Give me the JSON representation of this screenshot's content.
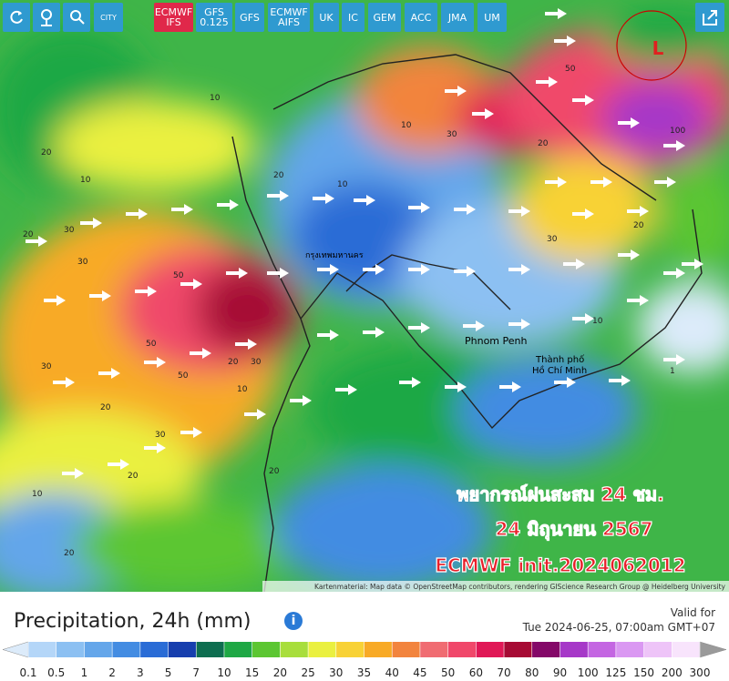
{
  "toolbar": {
    "buttons": [
      {
        "lines": [
          "CITY"
        ]
      },
      {
        "lines": [
          "ECMWF",
          "IFS"
        ]
      },
      {
        "lines": [
          "GFS",
          "0.125"
        ]
      },
      {
        "lines": [
          "GFS"
        ]
      },
      {
        "lines": [
          "ECMWF",
          "AIFS"
        ]
      },
      {
        "lines": [
          "UK"
        ]
      },
      {
        "lines": [
          "IC"
        ]
      },
      {
        "lines": [
          "GEM"
        ]
      },
      {
        "lines": [
          "ACC"
        ]
      },
      {
        "lines": [
          "JMA"
        ]
      },
      {
        "lines": [
          "UM"
        ]
      }
    ]
  },
  "map": {
    "places": [
      "กรุงเทพมหานคร",
      "Phnom Penh",
      "Thành phố",
      "Hồ Chí Minh"
    ],
    "low_marker": "L",
    "contour_labels": [
      "20",
      "20",
      "30",
      "10",
      "30",
      "50",
      "50",
      "30",
      "20",
      "30",
      "20",
      "10",
      "20",
      "50",
      "20",
      "10",
      "30",
      "20",
      "10",
      "30",
      "50",
      "100",
      "20",
      "10",
      "1",
      "20",
      "30",
      "10",
      "10",
      "20"
    ],
    "overlay": [
      "พยากรณ์ฝนสะสม 24 ชม.",
      "24 มิถุนายน 2567",
      "ECMWF init.2024062012"
    ],
    "attribution": "Kartenmaterial: Map data © OpenStreetMap contributors, rendering GIScience Research Group @ Heidelberg University"
  },
  "legend": {
    "title": "Precipitation, 24h (mm)",
    "valid_label": "Valid for",
    "valid_time": "Tue 2024-06-25, 07:00am GMT+07",
    "ticks": [
      0.1,
      0.5,
      1,
      2,
      3,
      5,
      7,
      10,
      15,
      20,
      25,
      30,
      35,
      40,
      45,
      50,
      60,
      70,
      80,
      90,
      100,
      125,
      150,
      200,
      300
    ],
    "colors": [
      "#dcebfa",
      "#b4d6f8",
      "#8cc0f2",
      "#64a6ea",
      "#438ce2",
      "#2a6cd6",
      "#173fae",
      "#0e6e50",
      "#1fa845",
      "#5cc632",
      "#a8de3c",
      "#eaf040",
      "#f8d236",
      "#f8aa26",
      "#f2843e",
      "#f06c72",
      "#f0486a",
      "#e01856",
      "#a60a34",
      "#840868",
      "#a638c8",
      "#c466e2",
      "#da98f2",
      "#eec4f8",
      "#f8e4fc",
      "#9a9a9a"
    ]
  }
}
